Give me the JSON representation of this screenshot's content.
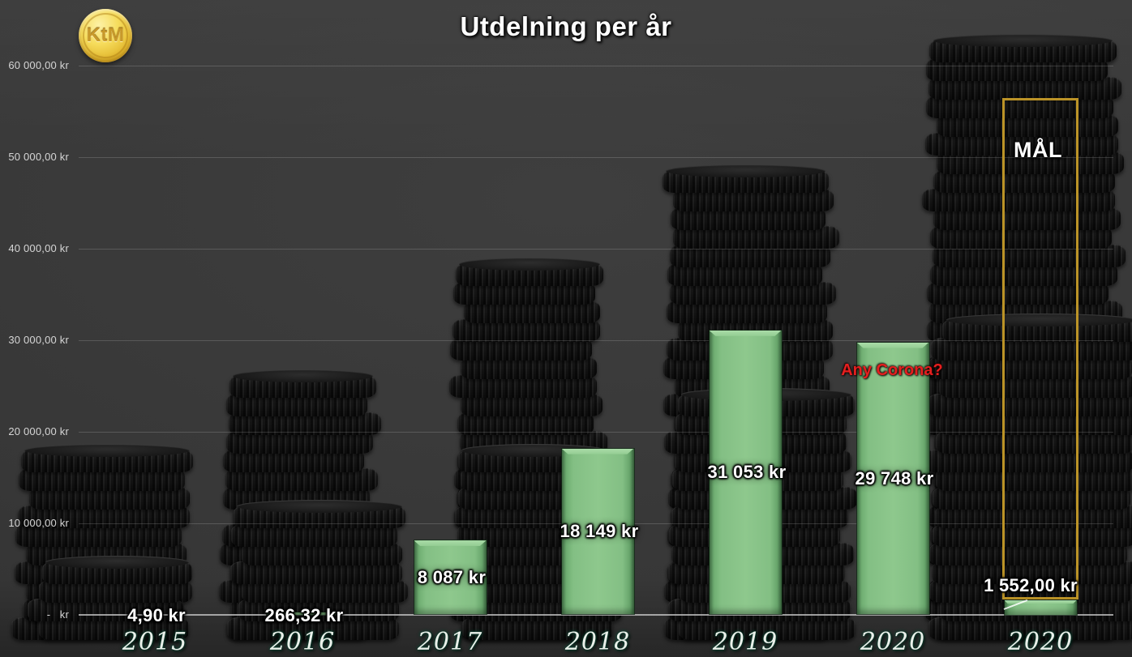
{
  "title": "Utdelning per år",
  "logo": {
    "text": "KtM"
  },
  "annotations": {
    "corona": "Any Corona?"
  },
  "goal": {
    "label": "MÅL"
  },
  "y_axis": {
    "tick_labels": [
      "60 000,00 kr",
      "50 000,00 kr",
      "40 000,00 kr",
      "30 000,00 kr",
      "20 000,00 kr",
      "10 000,00 kr",
      "-   kr"
    ]
  },
  "chart_data": {
    "type": "bar",
    "title": "Utdelning per år",
    "categories": [
      "2015",
      "2016",
      "2017",
      "2018",
      "2019",
      "2020",
      "2020"
    ],
    "values": [
      4.9,
      266.32,
      8087,
      18149,
      31053,
      29748,
      1552
    ],
    "data_labels": [
      "4,90 kr",
      "266,32 kr",
      "8 087 kr",
      "18 149 kr",
      "31 053 kr",
      "29 748 kr",
      "1 552,00 kr"
    ],
    "unit": "kr",
    "ylim": [
      0,
      60000
    ],
    "y_tick_interval": 10000,
    "grid": true,
    "legend": "none",
    "bar_color": "#7cba7d",
    "goal_box": {
      "label": "MÅL",
      "applies_to_category_index": 6,
      "approx_top_value": 56500,
      "border_color": "#bb9327"
    },
    "annotation": {
      "text": "Any Corona?",
      "color": "#e51f1f",
      "near_category": "2020"
    }
  }
}
